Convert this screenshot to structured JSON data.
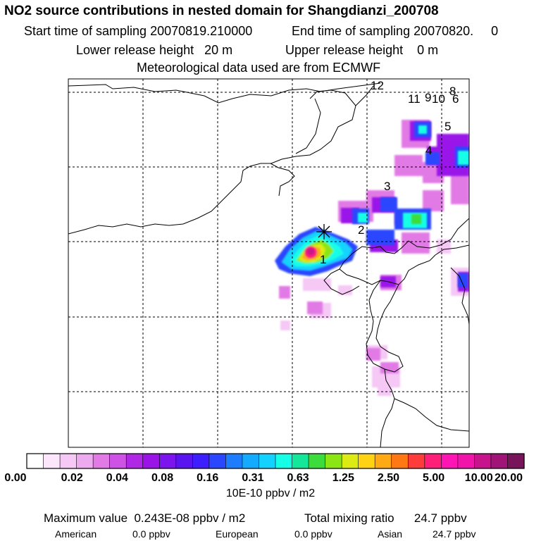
{
  "header": {
    "title": "NO2 source contributions in nested domain for Shangdianzi_200708",
    "start_label": "Start time of sampling 20070819.210000",
    "end_label": "End time of sampling 20070820.     0",
    "lower_label": "Lower release height   20 m",
    "upper_label": "Upper release height    0 m",
    "met_label": "Meteorological data used are from ECMWF"
  },
  "map": {
    "source_labels": [
      "1",
      "2",
      "3",
      "4",
      "5",
      "6",
      "8",
      "9",
      "10",
      "11",
      "12"
    ],
    "release_marker": "asterisk-star"
  },
  "colorbar": {
    "colors": [
      "#ffffff",
      "#fbe6fb",
      "#f5c8f5",
      "#eeaaee",
      "#e27ae6",
      "#cf52e6",
      "#b028e6",
      "#9a14e8",
      "#7c14ee",
      "#5a14f0",
      "#3c1eff",
      "#2a46ff",
      "#1e7cff",
      "#14aaff",
      "#14d2ff",
      "#14ffe6",
      "#14e69a",
      "#3cdc3c",
      "#8ce614",
      "#dceb14",
      "#ffd214",
      "#ffaa14",
      "#ff7814",
      "#ff3c3c",
      "#ff1e78",
      "#ff14b4",
      "#f014aa",
      "#c8148c",
      "#a01478",
      "#78145a"
    ],
    "tick_labels": [
      "0.00",
      "0.02",
      "0.04",
      "0.08",
      "0.16",
      "0.31",
      "0.63",
      "1.25",
      "2.50",
      "5.00",
      "10.00",
      "20.00"
    ],
    "units": "10E-10 ppbv / m2"
  },
  "summary": {
    "max_label": "Maximum value  0.243E-08 ppbv / m2",
    "total_label": "Total mixing ratio      24.7 ppbv",
    "american_label": "American",
    "american_value": "0.0 ppbv",
    "european_label": "European",
    "european_value": "0.0 ppbv",
    "asian_label": "Asian",
    "asian_value": "24.7 ppbv"
  }
}
